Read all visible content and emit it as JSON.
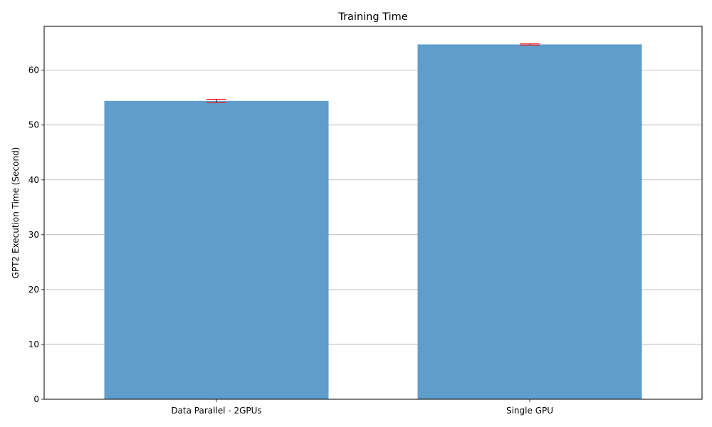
{
  "chart_data": {
    "type": "bar",
    "title": "Training Time",
    "xlabel": "",
    "ylabel": "GPT2 Execution Time (Second)",
    "categories": [
      "Data Parallel - 2GPUs",
      "Single GPU"
    ],
    "values": [
      54.4,
      64.7
    ],
    "error": [
      0.3,
      0.1
    ],
    "ylim": [
      0,
      68
    ],
    "yticks": [
      0,
      10,
      20,
      30,
      40,
      50,
      60
    ],
    "grid": "y-major",
    "colors": {
      "bar": "#5f9ecb",
      "error_bar": "#ff0000",
      "grid": "#b0b0b0"
    }
  }
}
